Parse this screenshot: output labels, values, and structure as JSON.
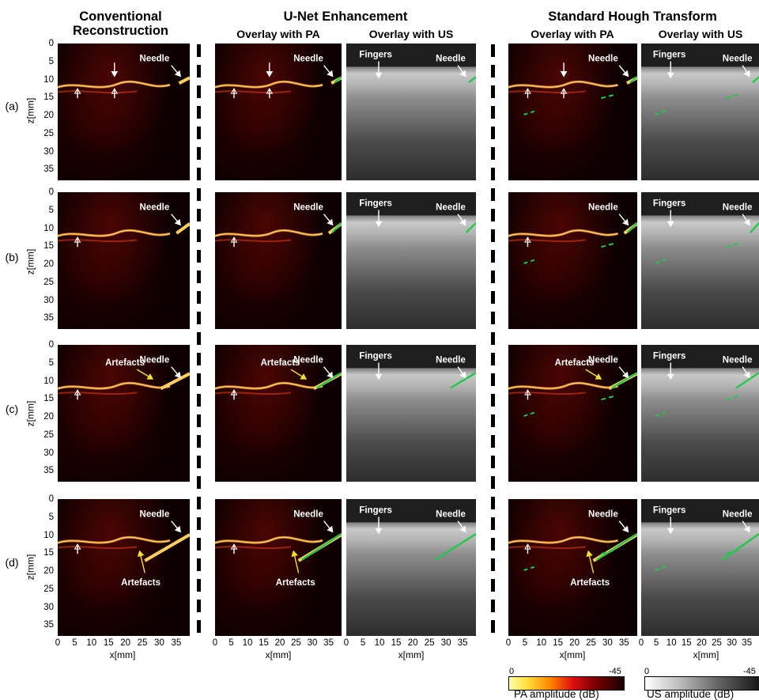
{
  "titles": {
    "conventional": "Conventional\nReconstruction",
    "unet": "U-Net Enhancement",
    "hough": "Standard Hough Transform",
    "overlay_pa": "Overlay with PA",
    "overlay_us": "Overlay with US"
  },
  "rows": [
    "(a)",
    "(b)",
    "(c)",
    "(d)"
  ],
  "axis": {
    "ylabel": "z[mm]",
    "xlabel": "x[mm]",
    "yticks": [
      "0",
      "5",
      "10",
      "15",
      "20",
      "25",
      "30",
      "35"
    ],
    "xticks": [
      "0",
      "5",
      "10",
      "15",
      "20",
      "25",
      "30",
      "35"
    ],
    "xticks_cut": [
      "0",
      "5",
      "10",
      "15",
      "20",
      "25",
      "30",
      "35"
    ]
  },
  "labels": {
    "needle": "Needle",
    "fingers": "Fingers",
    "artefacts": "Artefacts"
  },
  "colorbars": {
    "pa": {
      "min": "0",
      "max": "-45",
      "label": "PA amplitude (dB)"
    },
    "us": {
      "min": "0",
      "max": "-45",
      "label": "US amplitude (dB)"
    }
  },
  "colors": {
    "detection": "#22c84a",
    "arrow_yellow": "#f2e22a",
    "arrow_white": "#ffffff"
  }
}
